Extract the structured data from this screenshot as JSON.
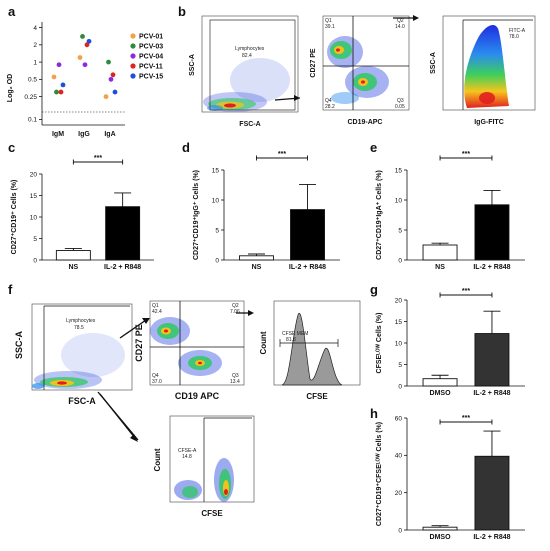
{
  "panel_letters": [
    "a",
    "b",
    "c",
    "d",
    "e",
    "f",
    "g",
    "h"
  ],
  "panel_a": {
    "ylabel": "Log₂ OD",
    "yticks": [
      "4",
      "2",
      "1",
      "0.5",
      "0.25",
      "0.1"
    ],
    "categories": [
      "IgM",
      "IgG",
      "IgA"
    ],
    "legend": [
      {
        "name": "PCV-01",
        "color": "#f4a04a"
      },
      {
        "name": "PCV-03",
        "color": "#2e8b3a"
      },
      {
        "name": "PCV-04",
        "color": "#8a2be2"
      },
      {
        "name": "PCV-11",
        "color": "#e0231c"
      },
      {
        "name": "PCV-15",
        "color": "#1f4fd6"
      }
    ]
  },
  "panel_b": {
    "plot1": {
      "xlabel": "FSC-A",
      "ylabel": "SSC-A",
      "gate": "Lymphocytes",
      "value": "82.4"
    },
    "plot2": {
      "xlabel": "CD19-APC",
      "ylabel": "CD27 PE",
      "q1": "Q1",
      "q1v": "39.1",
      "q2": "Q2",
      "q2v": "14.0",
      "q3": "Q3",
      "q3v": "0.05",
      "q4": "Q4",
      "q4v": "28.2"
    },
    "plot3": {
      "xlabel": "IgG-FITC",
      "ylabel": "SSC-A",
      "gate": "FITC-A",
      "value": "78.0"
    }
  },
  "panel_c": {
    "ylabel": "CD27⁺CD19⁺ Cells (%)",
    "ylim": [
      0,
      20
    ],
    "yticks": [
      "0",
      "5",
      "10",
      "15",
      "20"
    ],
    "categories": [
      "NS",
      "IL-2 + R848"
    ],
    "values": [
      2.2,
      12.4
    ],
    "errors": [
      0.5,
      3.2
    ],
    "sig": "***"
  },
  "panel_d": {
    "ylabel": "CD27⁺CD19⁺IgG⁺ Cells (%)",
    "ylim": [
      0,
      15
    ],
    "yticks": [
      "0",
      "5",
      "10",
      "15"
    ],
    "categories": [
      "NS",
      "IL-2 + R848"
    ],
    "values": [
      0.7,
      8.4
    ],
    "errors": [
      0.3,
      4.2
    ],
    "sig": "***"
  },
  "panel_e": {
    "ylabel": "CD27⁺CD19⁺IgA⁺ Cells (%)",
    "ylim": [
      0,
      15
    ],
    "yticks": [
      "0",
      "5",
      "10",
      "15"
    ],
    "categories": [
      "NS",
      "IL-2 + R848"
    ],
    "values": [
      2.5,
      9.2
    ],
    "errors": [
      0.3,
      2.4
    ],
    "sig": "***"
  },
  "panel_f": {
    "plot1": {
      "xlabel": "FSC-A",
      "ylabel": "SSC-A",
      "gate": "Lymphocytes",
      "value": "78.5"
    },
    "plot2": {
      "xlabel": "CD19 APC",
      "ylabel": "CD27 PE",
      "q1": "Q1",
      "q1v": "42.4",
      "q2": "Q2",
      "q2v": "7.06",
      "q3": "Q3",
      "q3v": "13.4",
      "q4": "Q4",
      "q4v": "37.0"
    },
    "plot3": {
      "xlabel": "CFSE",
      "ylabel": "Count",
      "gate": "CFSE MEM",
      "value": "81.8"
    },
    "plot4": {
      "xlabel": "CFSE",
      "ylabel": "Count",
      "gate": "CFSE-A",
      "value": "14.8"
    }
  },
  "panel_g": {
    "ylabel": "CFSEᴸᴼᵂ Cells (%)",
    "ylim": [
      0,
      20
    ],
    "yticks": [
      "0",
      "5",
      "10",
      "15",
      "20"
    ],
    "categories": [
      "DMSO",
      "IL-2 + R848"
    ],
    "values": [
      1.7,
      12.2
    ],
    "errors": [
      0.8,
      5.2
    ],
    "sig": "***"
  },
  "panel_h": {
    "ylabel": "CD27⁺CD19⁺CFSEᴸᴼᵂ Cells (%)",
    "ylim": [
      0,
      60
    ],
    "yticks": [
      "0",
      "20",
      "40",
      "60"
    ],
    "categories": [
      "DMSO",
      "IL-2 + R848"
    ],
    "values": [
      1.5,
      39.5
    ],
    "errors": [
      0.8,
      13.5
    ],
    "sig": "***"
  },
  "chart_data": [
    {
      "type": "scatter",
      "categories": [
        "IgM",
        "IgG",
        "IgA"
      ],
      "ylabel": "Log₂ OD",
      "series": [
        {
          "name": "PCV-01",
          "values": [
            0.55,
            1.2,
            0.25
          ]
        },
        {
          "name": "PCV-03",
          "values": [
            0.3,
            2.8,
            1.0
          ]
        },
        {
          "name": "PCV-04",
          "values": [
            0.9,
            0.9,
            0.5
          ]
        },
        {
          "name": "PCV-11",
          "values": [
            0.3,
            2.0,
            0.6
          ]
        },
        {
          "name": "PCV-15",
          "values": [
            0.4,
            2.3,
            0.3
          ]
        }
      ]
    },
    {
      "type": "bar",
      "categories": [
        "NS",
        "IL-2 + R848"
      ],
      "values": [
        2.2,
        12.4
      ],
      "ylabel": "CD27⁺CD19⁺ Cells (%)"
    },
    {
      "type": "bar",
      "categories": [
        "NS",
        "IL-2 + R848"
      ],
      "values": [
        0.7,
        8.4
      ],
      "ylabel": "CD27⁺CD19⁺IgG⁺ Cells (%)"
    },
    {
      "type": "bar",
      "categories": [
        "NS",
        "IL-2 + R848"
      ],
      "values": [
        2.5,
        9.2
      ],
      "ylabel": "CD27⁺CD19⁺IgA⁺ Cells (%)"
    },
    {
      "type": "bar",
      "categories": [
        "DMSO",
        "IL-2 + R848"
      ],
      "values": [
        1.7,
        12.2
      ],
      "ylabel": "CFSEᴸᴼᵂ Cells (%)"
    },
    {
      "type": "bar",
      "categories": [
        "DMSO",
        "IL-2 + R848"
      ],
      "values": [
        1.5,
        39.5
      ],
      "ylabel": "CD27⁺CD19⁺CFSEᴸᴼᵂ Cells (%)"
    }
  ]
}
